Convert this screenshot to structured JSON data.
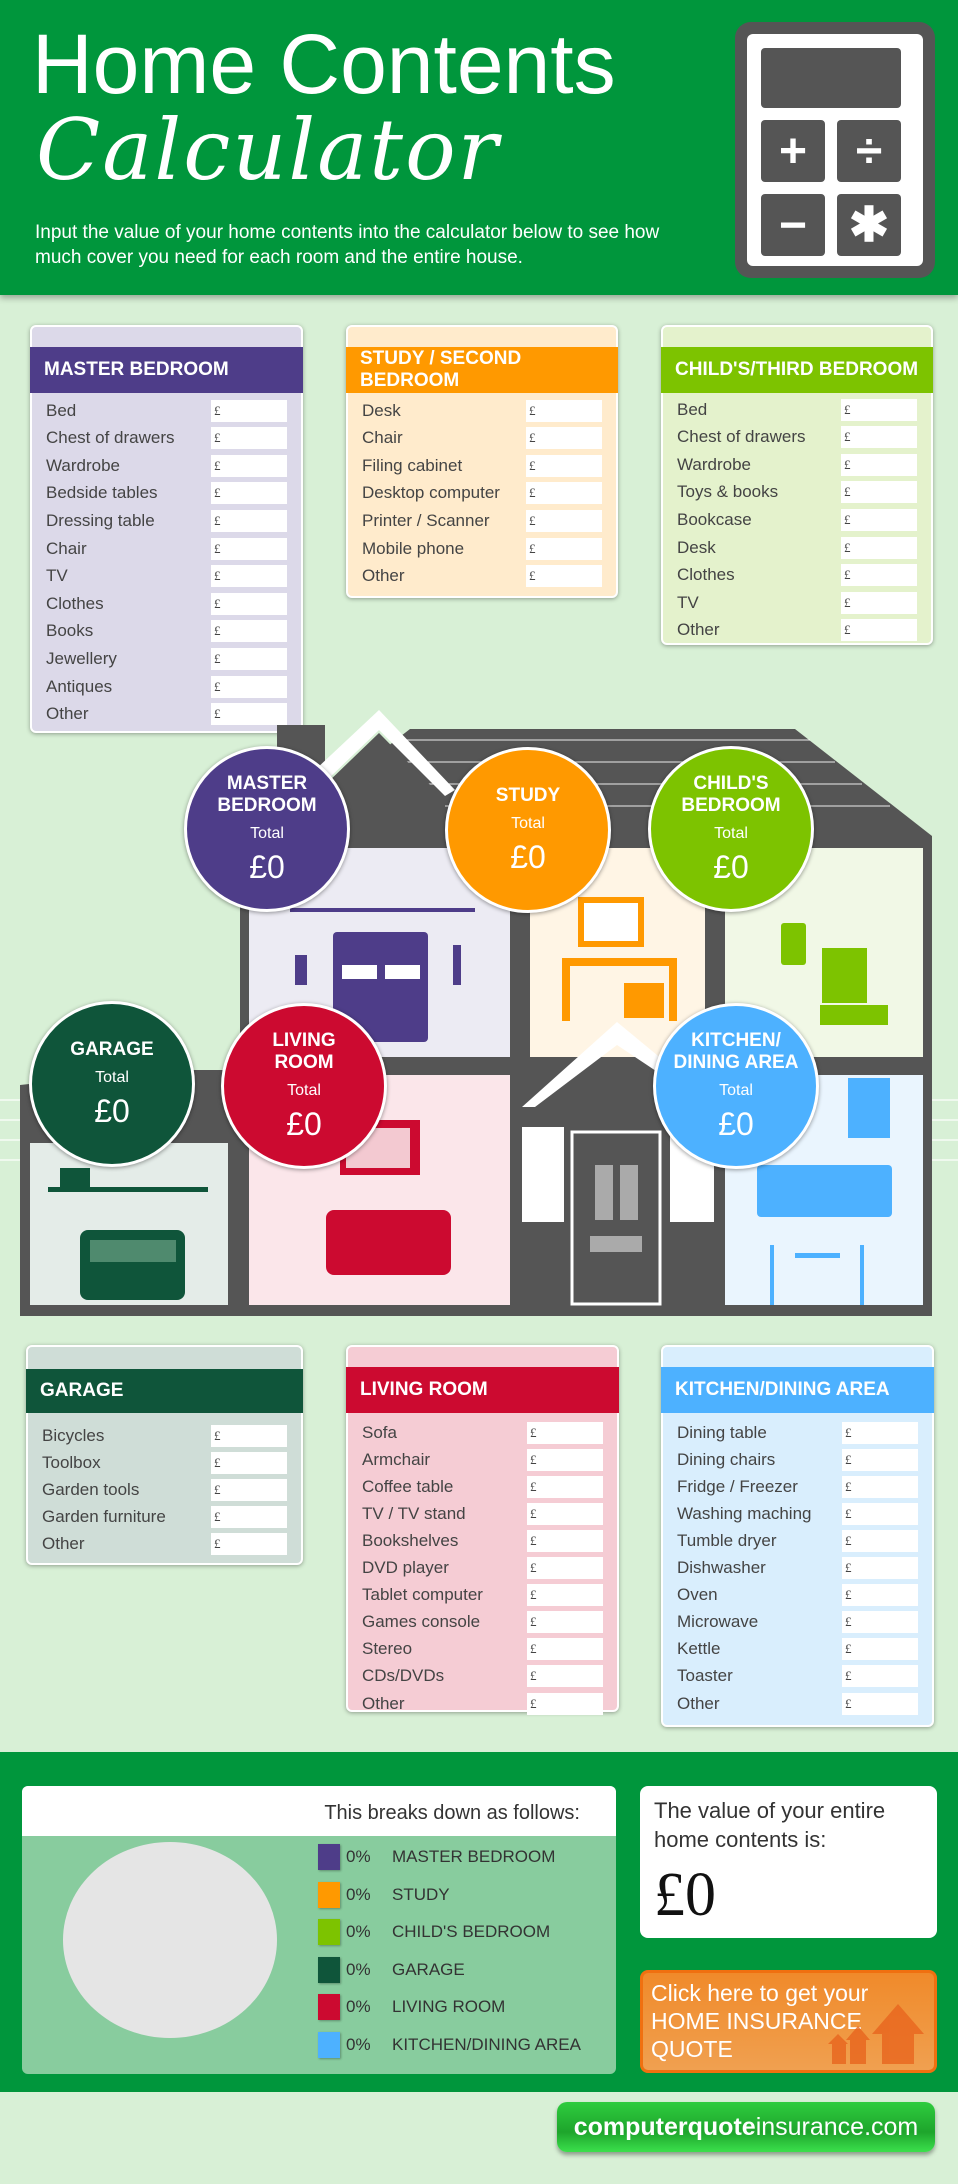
{
  "header": {
    "title_line1": "Home Contents",
    "title_line2": "Calculator",
    "description": "Input the value of your home contents into the calculator below to see how much cover you need for each room and the entire house.",
    "calculator_keys": [
      "+",
      "÷",
      "−",
      "✱"
    ]
  },
  "currency_symbol": "£",
  "rooms": {
    "master": {
      "title": "MASTER BEDROOM",
      "color": "#4e3d89",
      "bg": "#dcd9e9",
      "items": [
        "Bed",
        "Chest of drawers",
        "Wardrobe",
        "Bedside tables",
        "Dressing table",
        "Chair",
        "TV",
        "Clothes",
        "Books",
        "Jewellery",
        "Antiques",
        "Other"
      ]
    },
    "study": {
      "title": "STUDY / SECOND BEDROOM",
      "color": "#ff9900",
      "bg": "#ffebcc",
      "items": [
        "Desk",
        "Chair",
        "Filing cabinet",
        "Desktop computer",
        "Printer / Scanner",
        "Mobile phone",
        "Other"
      ]
    },
    "child": {
      "title": "CHILD'S/THIRD BEDROOM",
      "color": "#7dc300",
      "bg": "#e4f2cc",
      "items": [
        "Bed",
        "Chest of drawers",
        "Wardrobe",
        "Toys & books",
        "Bookcase",
        "Desk",
        "Clothes",
        "TV",
        "Other"
      ]
    },
    "garage": {
      "title": "GARAGE",
      "color": "#0f553a",
      "bg": "#cfddd7",
      "items": [
        "Bicycles",
        "Toolbox",
        "Garden tools",
        "Garden furniture",
        "Other"
      ]
    },
    "living": {
      "title": "LIVING ROOM",
      "color": "#cc0a30",
      "bg": "#f5ccd4",
      "items": [
        "Sofa",
        "Armchair",
        "Coffee table",
        "TV / TV stand",
        "Bookshelves",
        "DVD player",
        "Tablet computer",
        "Games console",
        "Stereo",
        "CDs/DVDs",
        "Other"
      ]
    },
    "kitchen": {
      "title": "KITCHEN/DINING AREA",
      "color": "#4db1ff",
      "bg": "#d9eefd",
      "items": [
        "Dining table",
        "Dining chairs",
        "Fridge / Freezer",
        "Washing maching",
        "Tumble dryer",
        "Dishwasher",
        "Oven",
        "Microwave",
        "Kettle",
        "Toaster",
        "Other"
      ]
    }
  },
  "house_totals": [
    {
      "name": "MASTER\nBEDROOM",
      "label": "Total",
      "value": "£0",
      "color": "#4e3d89"
    },
    {
      "name": "STUDY",
      "label": "Total",
      "value": "£0",
      "color": "#ff9900"
    },
    {
      "name": "CHILD'S\nBEDROOM",
      "label": "Total",
      "value": "£0",
      "color": "#7dc300"
    },
    {
      "name": "GARAGE",
      "label": "Total",
      "value": "£0",
      "color": "#0f553a"
    },
    {
      "name": "LIVING\nROOM",
      "label": "Total",
      "value": "£0",
      "color": "#cc0a30"
    },
    {
      "name": "KITCHEN/\nDINING AREA",
      "label": "Total",
      "value": "£0",
      "color": "#4db1ff"
    }
  ],
  "breakdown": {
    "heading": "This breaks down as follows:",
    "legend": [
      {
        "pct": "0%",
        "label": "MASTER BEDROOM",
        "color": "#4e3d89"
      },
      {
        "pct": "0%",
        "label": "STUDY",
        "color": "#ff9900"
      },
      {
        "pct": "0%",
        "label": "CHILD'S BEDROOM",
        "color": "#7dc300"
      },
      {
        "pct": "0%",
        "label": "GARAGE",
        "color": "#0f553a"
      },
      {
        "pct": "0%",
        "label": "LIVING ROOM",
        "color": "#cc0a30"
      },
      {
        "pct": "0%",
        "label": "KITCHEN/DINING AREA",
        "color": "#4db1ff"
      }
    ]
  },
  "total": {
    "label": "The value of your entire home contents is:",
    "value": "£0"
  },
  "quote": {
    "line1": "Click here to get your",
    "line2": "HOME INSURANCE",
    "line3": "QUOTE"
  },
  "logo": {
    "bold": "computerquote",
    "light": "insurance.com"
  }
}
